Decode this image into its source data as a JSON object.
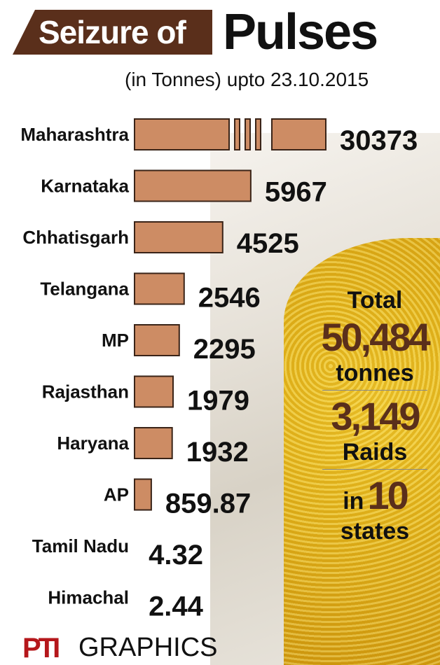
{
  "title": {
    "left": "Seizure of",
    "right": "Pulses"
  },
  "subtitle": "(in Tonnes) upto 23.10.2015",
  "chart_data": {
    "type": "bar",
    "orientation": "horizontal",
    "title": "Seizure of Pulses",
    "subtitle": "(in Tonnes) upto 23.10.2015",
    "categories": [
      "Maharashtra",
      "Karnataka",
      "Chhatisgarh",
      "Telangana",
      "MP",
      "Rajasthan",
      "Haryana",
      "AP",
      "Tamil Nadu",
      "Himachal"
    ],
    "values": [
      30373,
      5967,
      4525,
      2546,
      2295,
      1979,
      1932,
      859.87,
      4.32,
      2.44
    ],
    "value_labels": [
      "30373",
      "5967",
      "4525",
      "2546",
      "2295",
      "1979",
      "1932",
      "859.87",
      "4.32",
      "2.44"
    ],
    "broken_axis_first_bar": true,
    "bar_color": "#cd8c64",
    "grid": false
  },
  "summary": {
    "total_label": "Total",
    "total_value": "50,484",
    "total_unit": "tonnes",
    "raids_value": "3,149",
    "raids_label": "Raids",
    "states_prefix": "in",
    "states_value": "10",
    "states_label": "states"
  },
  "footer": {
    "logo": "PTI",
    "text": "GRAPHICS"
  },
  "colors": {
    "brown": "#5a2f1b",
    "bar": "#cd8c64",
    "logo_red": "#b5171b"
  }
}
